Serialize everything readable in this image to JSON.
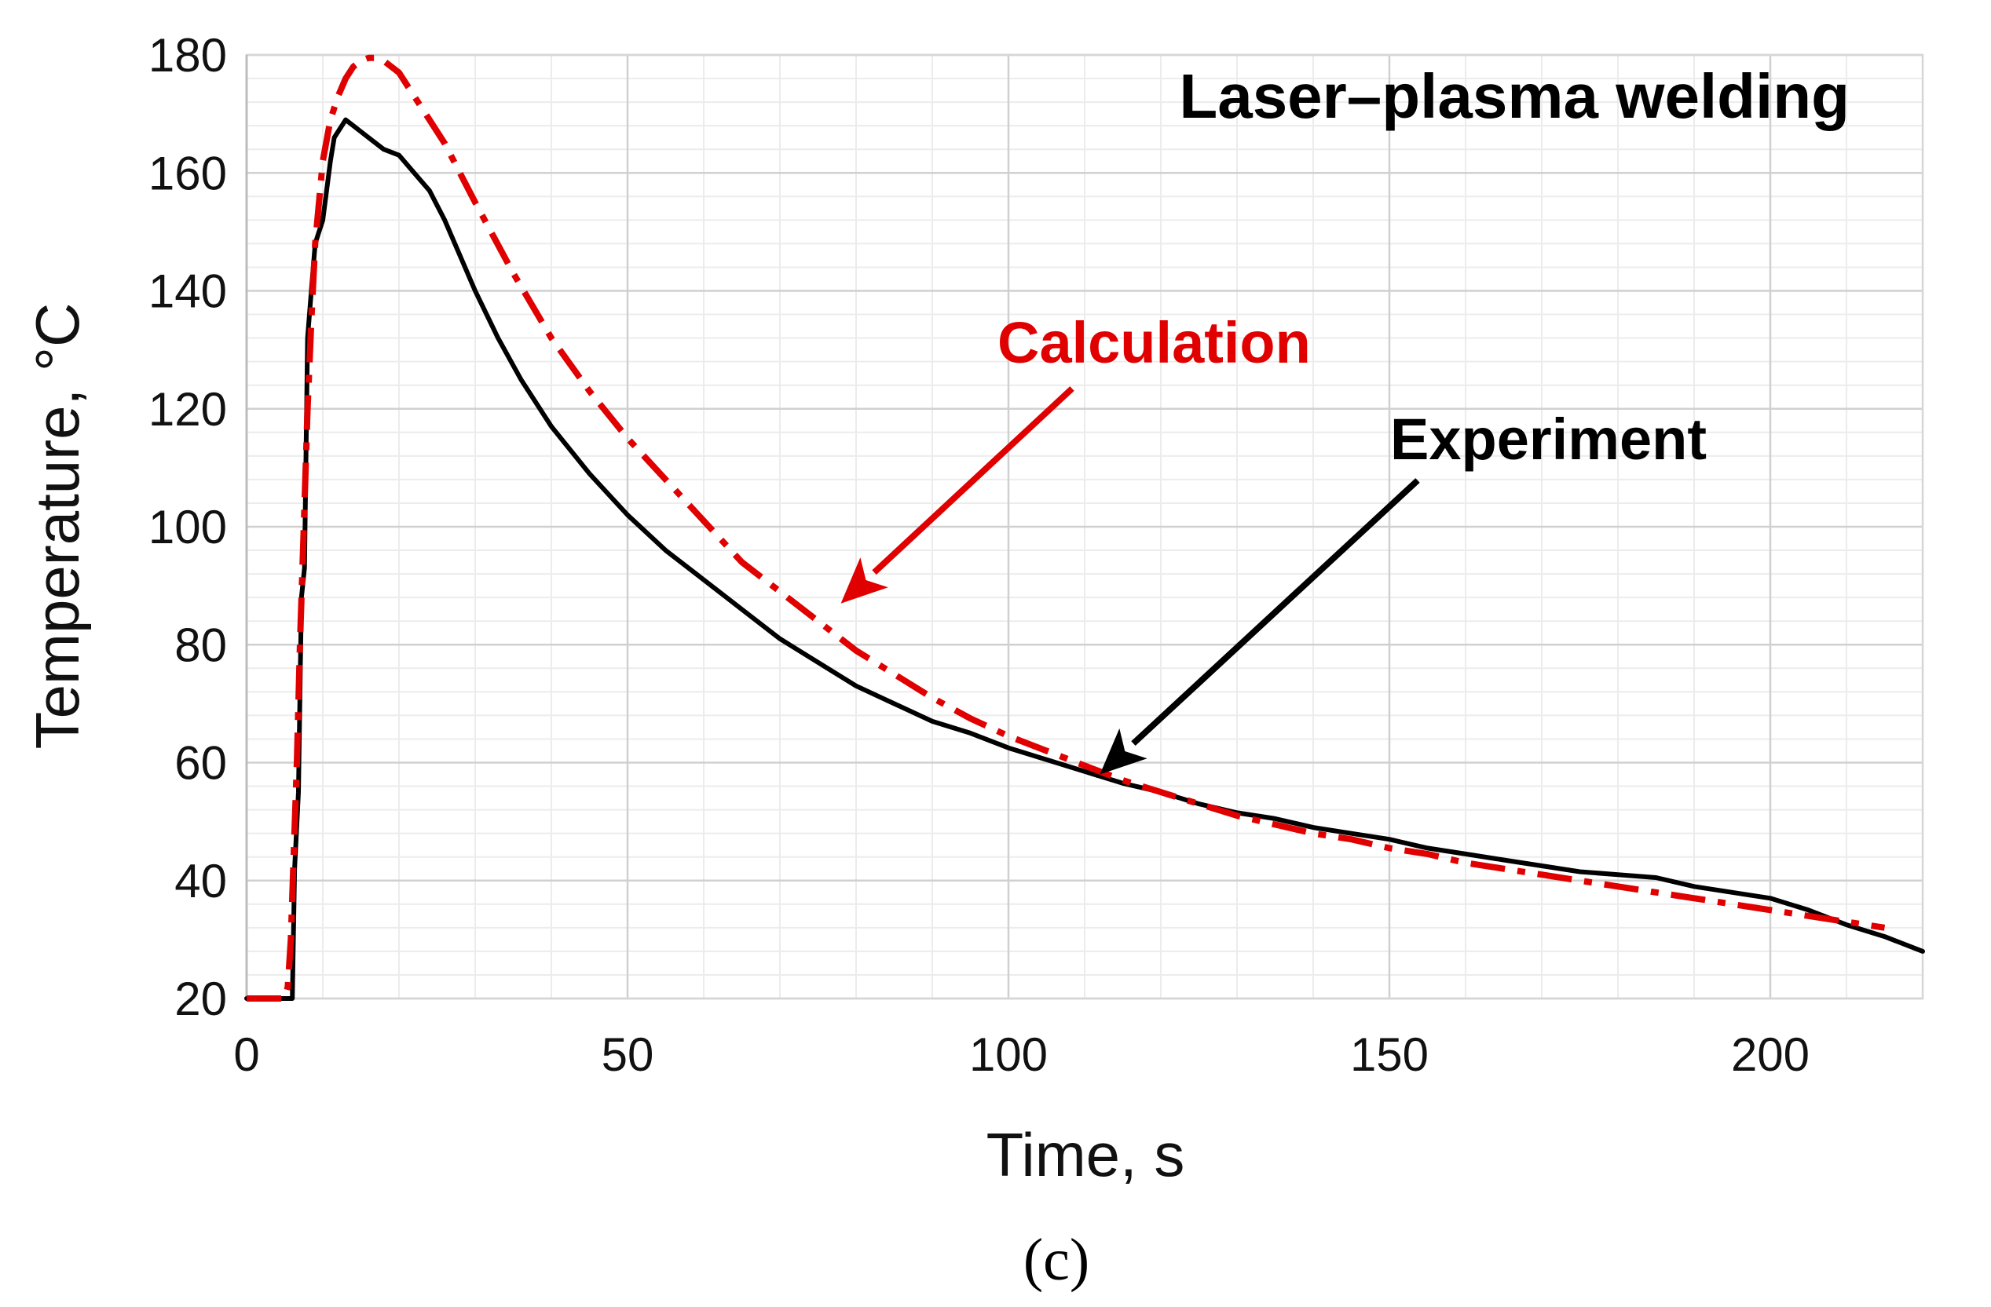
{
  "chart_data": {
    "type": "line",
    "title": "Laser–plasma welding",
    "xlabel": "Time, s",
    "ylabel": "Temperature, °C",
    "caption": "(c)",
    "xlim": [
      0,
      220
    ],
    "ylim": [
      20,
      180
    ],
    "x_ticks": [
      0,
      50,
      100,
      150,
      200
    ],
    "y_ticks": [
      20,
      40,
      60,
      80,
      100,
      120,
      140,
      160,
      180
    ],
    "grid": true,
    "colors": {
      "experiment": "#000000",
      "calculation": "#e00000"
    },
    "annotations": [
      {
        "text": "Calculation",
        "series": "Calculation",
        "target": [
          78,
          87
        ]
      },
      {
        "text": "Experiment",
        "series": "Experiment",
        "target": [
          112,
          58
        ]
      }
    ],
    "series": [
      {
        "name": "Experiment",
        "style": "solid",
        "x": [
          0,
          5,
          5.8,
          6,
          6.3,
          6.8,
          7.2,
          7.6,
          8,
          8.5,
          9,
          9.5,
          10,
          11,
          11.5,
          12,
          12.5,
          13,
          14,
          15,
          16,
          18,
          20,
          22,
          24,
          26,
          28,
          30,
          33,
          36,
          40,
          45,
          50,
          55,
          60,
          65,
          70,
          75,
          80,
          85,
          90,
          95,
          100,
          105,
          110,
          115,
          120,
          125,
          130,
          135,
          140,
          145,
          150,
          155,
          160,
          165,
          170,
          175,
          180,
          185,
          190,
          195,
          200,
          205,
          210,
          215,
          220
        ],
        "y": [
          20,
          20,
          20,
          20,
          42,
          55,
          88,
          93,
          132,
          140,
          148,
          150,
          152,
          162,
          166,
          167,
          168,
          169,
          168,
          167,
          166,
          164,
          163,
          160,
          157,
          152,
          146,
          140,
          132,
          125,
          117,
          109,
          102,
          96,
          91,
          86,
          81,
          77,
          73,
          70,
          67,
          65,
          62.5,
          60.5,
          58.5,
          56.5,
          55,
          53,
          51.5,
          50.5,
          49,
          48,
          47,
          45.5,
          44.5,
          43.5,
          42.5,
          41.5,
          41,
          40.5,
          39,
          38,
          37,
          35,
          32.5,
          30.5,
          28
        ]
      },
      {
        "name": "Calculation",
        "style": "dash-dot",
        "x": [
          0,
          5,
          5.4,
          5.8,
          6.2,
          6.6,
          7,
          7.5,
          8,
          8.5,
          9,
          10,
          11,
          12,
          13,
          14,
          15,
          16,
          17,
          18,
          19,
          20,
          22,
          24,
          26,
          28,
          30,
          35,
          40,
          45,
          50,
          55,
          60,
          65,
          70,
          75,
          80,
          85,
          90,
          95,
          100,
          105,
          110,
          115,
          120,
          125,
          130,
          135,
          140,
          145,
          150,
          155,
          160,
          165,
          170,
          175,
          180,
          185,
          190,
          195,
          200,
          205,
          210,
          215
        ],
        "y": [
          20,
          20,
          22,
          30,
          45,
          60,
          80,
          100,
          120,
          135,
          148,
          162,
          169,
          173,
          176,
          178,
          179,
          179.5,
          179.5,
          179,
          178,
          177,
          173,
          169,
          165,
          160,
          155,
          143,
          132,
          123,
          115,
          108,
          101,
          94,
          89,
          84,
          79,
          75,
          71,
          67.5,
          64.5,
          62,
          59.5,
          57,
          55,
          53,
          51,
          49.5,
          48,
          47,
          45.5,
          44.5,
          43,
          42,
          41,
          40,
          39,
          38,
          37,
          36,
          35,
          34,
          33,
          32
        ]
      }
    ]
  }
}
